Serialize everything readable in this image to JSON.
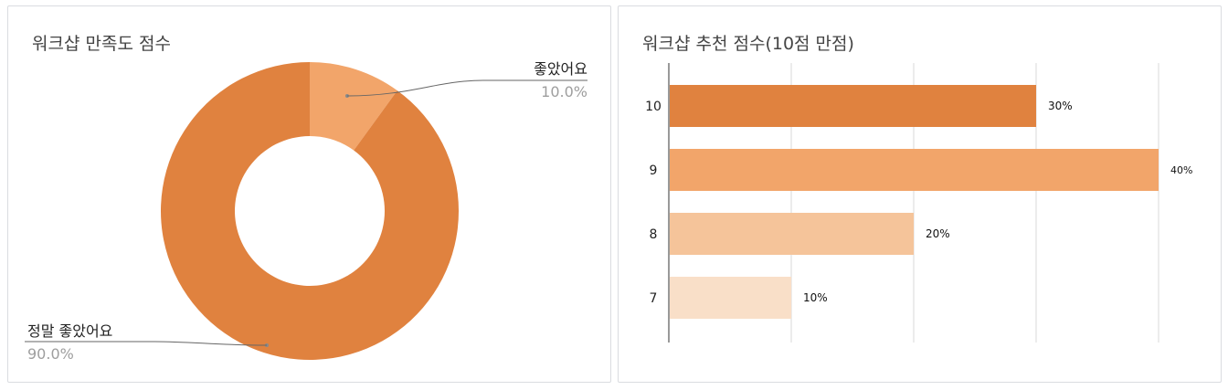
{
  "colors": {
    "dark_orange": "#e0823f",
    "mid_orange": "#f2a56a",
    "light_orange": "#f5c49a",
    "pale_orange": "#f9dfc8",
    "grid": "#d9d9d9",
    "pct_gray": "#9e9e9e"
  },
  "chart_data": [
    {
      "type": "pie",
      "title": "워크샵 만족도 점수",
      "slices": [
        {
          "label": "좋았어요",
          "value": 10.0,
          "pct_label": "10.0%",
          "color": "#f2a56a"
        },
        {
          "label": "정말 좋았어요",
          "value": 90.0,
          "pct_label": "90.0%",
          "color": "#e0823f"
        }
      ],
      "donut": true
    },
    {
      "type": "bar",
      "orientation": "horizontal",
      "title": "워크샵 추천 점수(10점 만점)",
      "categories": [
        "10",
        "9",
        "8",
        "7"
      ],
      "values": [
        30,
        40,
        20,
        10
      ],
      "value_labels": [
        "30%",
        "40%",
        "20%",
        "10%"
      ],
      "colors": [
        "#e0823f",
        "#f2a56a",
        "#f5c49a",
        "#f9dfc8"
      ],
      "xlim": [
        0,
        40
      ],
      "grid": true
    }
  ]
}
